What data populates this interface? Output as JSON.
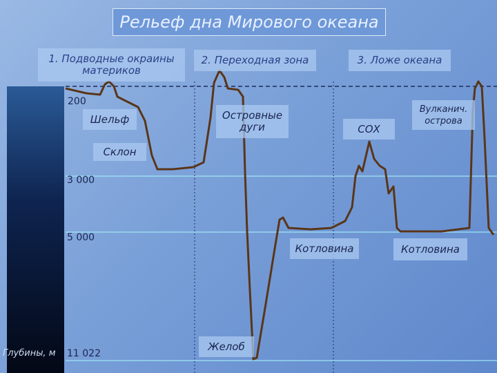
{
  "title": "Рельеф дна Мирового океана",
  "zones": [
    "1. Подводные окраины материков",
    "2. Переходная зона",
    "3. Ложе океана"
  ],
  "features": [
    "Шельф",
    "Склон",
    "Островные дуги",
    "СОХ",
    "Вулканич. острова",
    "Котловина",
    "Котловина",
    "Желоб"
  ],
  "depths": [
    "200",
    "3 000",
    "5 000",
    "11 022"
  ],
  "depth_axis_label": "Глубины, м"
}
